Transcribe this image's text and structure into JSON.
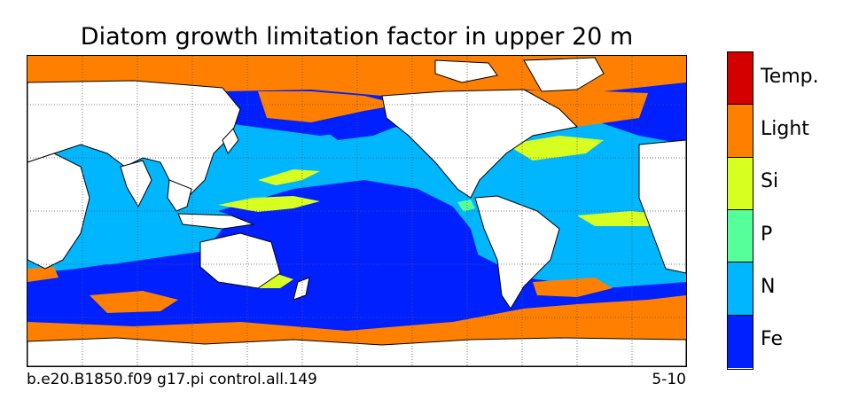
{
  "title": "Diatom growth limitation factor in upper 20 m",
  "caption_left": "b.e20.B1850.f09 g17.pi control.all.149",
  "caption_right": "5-10",
  "colorbar": {
    "categories": [
      {
        "label": "Temp.",
        "color": "#d40000"
      },
      {
        "label": "Light",
        "color": "#ff8000"
      },
      {
        "label": "Si",
        "color": "#d7ff1f"
      },
      {
        "label": "P",
        "color": "#55ff99"
      },
      {
        "label": "N",
        "color": "#00b7ff"
      },
      {
        "label": "Fe",
        "color": "#0020ff"
      }
    ]
  },
  "colors": {
    "land": "#ffffff",
    "coast": "#000000",
    "grid": "#555555"
  }
}
